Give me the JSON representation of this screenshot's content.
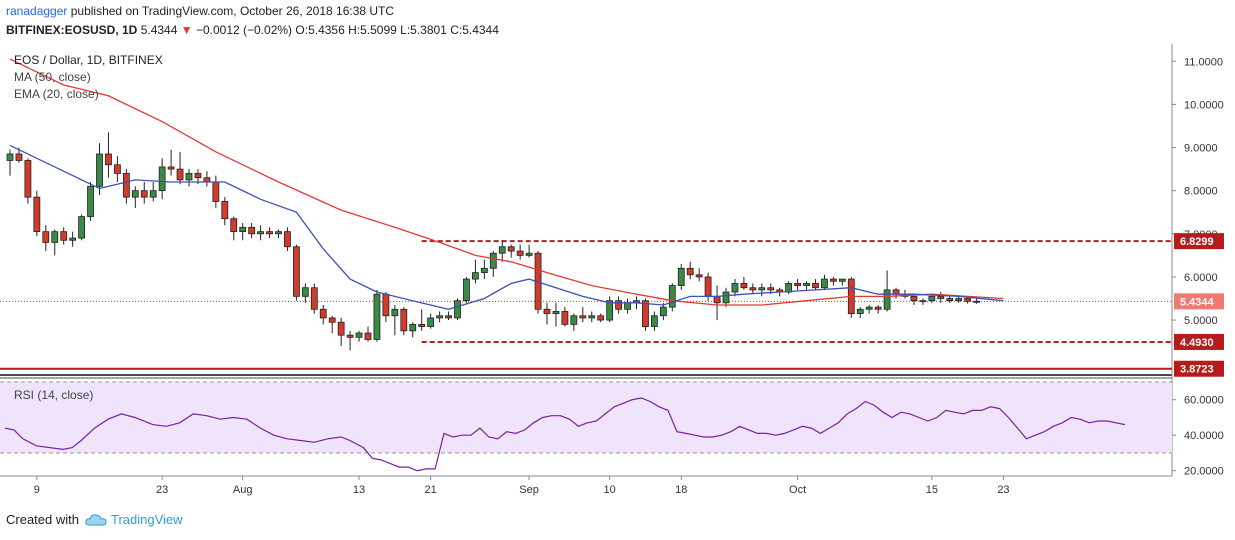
{
  "header": {
    "author": "ranadagger",
    "published_text": "published on TradingView.com, October 26, 2018 16:38 UTC",
    "symbol": "BITFINEX:EOSUSD, 1D",
    "last": "5.4344",
    "change": "−0.0012 (−0.02%)",
    "ohlc": "O:5.4356 H:5.5099 L:5.3801 C:5.4344"
  },
  "legend": {
    "title": "EOS / Dollar, 1D, BITFINEX",
    "ma": "MA (50, close)",
    "ema": "EMA (20, close)",
    "rsi": "RSI (14, close)"
  },
  "footer": {
    "created_with": "Created with",
    "brand": "TradingView"
  },
  "colors": {
    "up": "#3a8a46",
    "down": "#d13b2c",
    "ma": "#e53935",
    "ema": "#3f51b5",
    "level": "#b71c1c",
    "rsi": "#7b1fa2",
    "rsi_band": "#efe4fb",
    "axis_text": "#333333"
  },
  "chart_data": [
    {
      "type": "candlestick",
      "title": "EOS / Dollar, 1D, BITFINEX",
      "x_tick_labels": [
        "9",
        "23",
        "Aug",
        "13",
        "21",
        "Sep",
        "10",
        "18",
        "Oct",
        "15",
        "23"
      ],
      "y_tick_labels": [
        "5.0000",
        "6.0000",
        "7.0000",
        "8.0000",
        "9.0000",
        "10.0000",
        "11.0000"
      ],
      "ylim": [
        3.75,
        11.4
      ],
      "grid": false,
      "price_labels": [
        {
          "value": 6.8299,
          "label": "6.8299"
        },
        {
          "value": 5.4344,
          "label": "5.4344"
        },
        {
          "value": 4.493,
          "label": "4.4930"
        },
        {
          "value": 3.8723,
          "label": "3.8723"
        }
      ],
      "horizontal_levels": [
        6.8299,
        4.493,
        3.8723
      ],
      "candles": [
        [
          8.7,
          8.95,
          8.35,
          8.85
        ],
        [
          8.85,
          9.0,
          8.65,
          8.7
        ],
        [
          8.7,
          8.75,
          7.7,
          7.85
        ],
        [
          7.85,
          8.0,
          6.95,
          7.05
        ],
        [
          7.05,
          7.2,
          6.6,
          6.8
        ],
        [
          6.8,
          7.1,
          6.5,
          7.05
        ],
        [
          7.05,
          7.15,
          6.75,
          6.85
        ],
        [
          6.85,
          7.05,
          6.7,
          6.9
        ],
        [
          6.9,
          7.45,
          6.85,
          7.4
        ],
        [
          7.4,
          8.2,
          7.3,
          8.1
        ],
        [
          8.1,
          9.1,
          7.9,
          8.85
        ],
        [
          8.85,
          9.35,
          8.3,
          8.6
        ],
        [
          8.6,
          8.8,
          8.2,
          8.4
        ],
        [
          8.4,
          8.5,
          7.7,
          7.85
        ],
        [
          7.85,
          8.1,
          7.6,
          8.0
        ],
        [
          8.0,
          8.2,
          7.7,
          7.85
        ],
        [
          7.85,
          8.2,
          7.75,
          8.0
        ],
        [
          8.0,
          8.75,
          7.8,
          8.55
        ],
        [
          8.55,
          8.95,
          8.35,
          8.5
        ],
        [
          8.5,
          8.9,
          8.15,
          8.25
        ],
        [
          8.25,
          8.5,
          8.1,
          8.4
        ],
        [
          8.4,
          8.5,
          8.15,
          8.3
        ],
        [
          8.3,
          8.45,
          8.1,
          8.2
        ],
        [
          8.2,
          8.35,
          7.6,
          7.75
        ],
        [
          7.75,
          7.85,
          7.2,
          7.35
        ],
        [
          7.35,
          7.4,
          6.85,
          7.05
        ],
        [
          7.05,
          7.25,
          6.85,
          7.15
        ],
        [
          7.15,
          7.25,
          6.9,
          7.0
        ],
        [
          7.0,
          7.2,
          6.85,
          7.05
        ],
        [
          7.05,
          7.15,
          6.9,
          7.0
        ],
        [
          7.0,
          7.1,
          6.9,
          7.05
        ],
        [
          7.05,
          7.15,
          6.6,
          6.7
        ],
        [
          6.7,
          6.75,
          5.45,
          5.55
        ],
        [
          5.55,
          5.85,
          5.4,
          5.75
        ],
        [
          5.75,
          5.85,
          5.15,
          5.25
        ],
        [
          5.25,
          5.35,
          4.9,
          5.05
        ],
        [
          5.05,
          5.1,
          4.7,
          4.95
        ],
        [
          4.95,
          5.05,
          4.4,
          4.65
        ],
        [
          4.65,
          4.75,
          4.3,
          4.6
        ],
        [
          4.6,
          4.75,
          4.5,
          4.7
        ],
        [
          4.7,
          4.85,
          4.5,
          4.55
        ],
        [
          4.55,
          5.7,
          4.5,
          5.6
        ],
        [
          5.6,
          5.65,
          4.95,
          5.1
        ],
        [
          5.1,
          5.35,
          4.65,
          5.25
        ],
        [
          5.25,
          5.3,
          4.65,
          4.75
        ],
        [
          4.75,
          4.95,
          4.6,
          4.9
        ],
        [
          4.9,
          5.25,
          4.75,
          4.85
        ],
        [
          4.85,
          5.15,
          4.8,
          5.05
        ],
        [
          5.05,
          5.2,
          4.95,
          5.1
        ],
        [
          5.1,
          5.2,
          5.0,
          5.05
        ],
        [
          5.05,
          5.5,
          5.0,
          5.45
        ],
        [
          5.45,
          6.0,
          5.4,
          5.95
        ],
        [
          5.95,
          6.4,
          5.85,
          6.1
        ],
        [
          6.1,
          6.4,
          5.95,
          6.2
        ],
        [
          6.2,
          6.6,
          6.0,
          6.55
        ],
        [
          6.55,
          6.85,
          6.35,
          6.7
        ],
        [
          6.7,
          6.75,
          6.45,
          6.6
        ],
        [
          6.6,
          6.75,
          6.4,
          6.5
        ],
        [
          6.5,
          6.75,
          6.45,
          6.55
        ],
        [
          6.55,
          6.6,
          5.15,
          5.25
        ],
        [
          5.25,
          5.4,
          4.9,
          5.15
        ],
        [
          5.15,
          5.4,
          4.85,
          5.2
        ],
        [
          5.2,
          5.3,
          4.85,
          4.9
        ],
        [
          4.9,
          5.15,
          4.75,
          5.1
        ],
        [
          5.1,
          5.3,
          4.95,
          5.05
        ],
        [
          5.05,
          5.2,
          4.95,
          5.1
        ],
        [
          5.1,
          5.15,
          4.95,
          5.0
        ],
        [
          5.0,
          5.55,
          4.95,
          5.45
        ],
        [
          5.45,
          5.55,
          5.15,
          5.25
        ],
        [
          5.25,
          5.5,
          5.15,
          5.4
        ],
        [
          5.4,
          5.55,
          5.25,
          5.45
        ],
        [
          5.45,
          5.5,
          4.75,
          4.85
        ],
        [
          4.85,
          5.2,
          4.75,
          5.1
        ],
        [
          5.1,
          5.4,
          5.0,
          5.3
        ],
        [
          5.3,
          5.85,
          5.2,
          5.8
        ],
        [
          5.8,
          6.3,
          5.7,
          6.2
        ],
        [
          6.2,
          6.35,
          5.95,
          6.05
        ],
        [
          6.05,
          6.2,
          5.9,
          6.0
        ],
        [
          6.0,
          6.1,
          5.45,
          5.55
        ],
        [
          5.55,
          5.8,
          5.0,
          5.4
        ],
        [
          5.4,
          5.75,
          5.3,
          5.65
        ],
        [
          5.65,
          5.95,
          5.55,
          5.85
        ],
        [
          5.85,
          6.0,
          5.7,
          5.75
        ],
        [
          5.75,
          5.85,
          5.6,
          5.7
        ],
        [
          5.7,
          5.85,
          5.55,
          5.75
        ],
        [
          5.75,
          5.85,
          5.6,
          5.7
        ],
        [
          5.7,
          5.75,
          5.55,
          5.65
        ],
        [
          5.65,
          5.9,
          5.6,
          5.85
        ],
        [
          5.85,
          5.95,
          5.7,
          5.8
        ],
        [
          5.8,
          5.9,
          5.7,
          5.85
        ],
        [
          5.85,
          5.95,
          5.7,
          5.75
        ],
        [
          5.75,
          6.05,
          5.7,
          5.95
        ],
        [
          5.95,
          6.0,
          5.8,
          5.9
        ],
        [
          5.9,
          5.95,
          5.8,
          5.95
        ],
        [
          5.95,
          6.0,
          5.05,
          5.15
        ],
        [
          5.15,
          5.3,
          5.05,
          5.25
        ],
        [
          5.25,
          5.35,
          5.15,
          5.3
        ],
        [
          5.3,
          5.35,
          5.15,
          5.25
        ],
        [
          5.25,
          6.15,
          5.2,
          5.7
        ],
        [
          5.7,
          5.75,
          5.5,
          5.6
        ],
        [
          5.6,
          5.7,
          5.5,
          5.55
        ],
        [
          5.55,
          5.6,
          5.35,
          5.45
        ],
        [
          5.45,
          5.5,
          5.35,
          5.45
        ],
        [
          5.45,
          5.6,
          5.4,
          5.55
        ],
        [
          5.55,
          5.65,
          5.4,
          5.5
        ],
        [
          5.5,
          5.55,
          5.4,
          5.45
        ],
        [
          5.45,
          5.55,
          5.4,
          5.5
        ],
        [
          5.5,
          5.52,
          5.38,
          5.4356
        ],
        [
          5.4356,
          5.5099,
          5.3801,
          5.4344
        ]
      ],
      "ema20": [
        [
          0,
          9.05
        ],
        [
          5,
          8.55
        ],
        [
          10,
          8.05
        ],
        [
          14,
          8.25
        ],
        [
          18,
          8.2
        ],
        [
          24,
          8.2
        ],
        [
          28,
          7.8
        ],
        [
          32,
          7.5
        ],
        [
          35,
          6.65
        ],
        [
          38,
          5.95
        ],
        [
          41,
          5.65
        ],
        [
          45,
          5.45
        ],
        [
          49,
          5.25
        ],
        [
          53,
          5.5
        ],
        [
          56,
          5.85
        ],
        [
          58,
          5.95
        ],
        [
          61,
          5.75
        ],
        [
          64,
          5.55
        ],
        [
          67,
          5.4
        ],
        [
          70,
          5.4
        ],
        [
          73,
          5.35
        ],
        [
          76,
          5.55
        ],
        [
          79,
          5.55
        ],
        [
          82,
          5.6
        ],
        [
          86,
          5.65
        ],
        [
          90,
          5.7
        ],
        [
          94,
          5.75
        ],
        [
          97,
          5.6
        ],
        [
          101,
          5.6
        ],
        [
          106,
          5.55
        ],
        [
          111,
          5.45
        ]
      ],
      "ma50": [
        [
          0,
          11.05
        ],
        [
          6,
          10.45
        ],
        [
          11,
          10.2
        ],
        [
          17,
          9.6
        ],
        [
          23,
          8.9
        ],
        [
          30,
          8.2
        ],
        [
          37,
          7.55
        ],
        [
          43,
          7.15
        ],
        [
          48,
          6.8
        ],
        [
          52,
          6.5
        ],
        [
          56,
          6.35
        ],
        [
          60,
          6.1
        ],
        [
          65,
          5.8
        ],
        [
          70,
          5.6
        ],
        [
          74,
          5.45
        ],
        [
          79,
          5.35
        ],
        [
          84,
          5.35
        ],
        [
          89,
          5.45
        ],
        [
          94,
          5.55
        ],
        [
          98,
          5.55
        ],
        [
          103,
          5.6
        ],
        [
          107,
          5.55
        ],
        [
          111,
          5.5
        ]
      ]
    },
    {
      "type": "line",
      "title": "RSI (14, close)",
      "y_tick_labels": [
        "20.0000",
        "40.0000",
        "60.0000"
      ],
      "ylim": [
        17,
        70
      ],
      "band": [
        30,
        70
      ],
      "points": [
        [
          0,
          44
        ],
        [
          2,
          43
        ],
        [
          4,
          38
        ],
        [
          7,
          34
        ],
        [
          10,
          33
        ],
        [
          13,
          32
        ],
        [
          15,
          33
        ],
        [
          17,
          37
        ],
        [
          20,
          44
        ],
        [
          23,
          49
        ],
        [
          26,
          52
        ],
        [
          29,
          50
        ],
        [
          33,
          46
        ],
        [
          36,
          45
        ],
        [
          39,
          47
        ],
        [
          42,
          52
        ],
        [
          45,
          51
        ],
        [
          48,
          49
        ],
        [
          51,
          50
        ],
        [
          54,
          49
        ],
        [
          57,
          44
        ],
        [
          60,
          40
        ],
        [
          63,
          38
        ],
        [
          66,
          37
        ],
        [
          69,
          36
        ],
        [
          72,
          38
        ],
        [
          75,
          39
        ],
        [
          77,
          37
        ],
        [
          80,
          33
        ],
        [
          82,
          27
        ],
        [
          84,
          26
        ],
        [
          86,
          24
        ],
        [
          88,
          22
        ],
        [
          90,
          22
        ],
        [
          92,
          20
        ],
        [
          94,
          21
        ],
        [
          96,
          21
        ],
        [
          98,
          41
        ],
        [
          100,
          39
        ],
        [
          102,
          40
        ],
        [
          104,
          40
        ],
        [
          106,
          44
        ],
        [
          108,
          39
        ],
        [
          110,
          38
        ],
        [
          112,
          42
        ],
        [
          114,
          41
        ],
        [
          116,
          43
        ],
        [
          118,
          47
        ],
        [
          120,
          50
        ],
        [
          122,
          51
        ],
        [
          124,
          51
        ],
        [
          126,
          49
        ],
        [
          128,
          45
        ],
        [
          130,
          47
        ],
        [
          132,
          48
        ],
        [
          134,
          52
        ],
        [
          136,
          56
        ],
        [
          138,
          58
        ],
        [
          140,
          60
        ],
        [
          142,
          61
        ],
        [
          144,
          59
        ],
        [
          146,
          56
        ],
        [
          148,
          54
        ],
        [
          150,
          42
        ],
        [
          152,
          41
        ],
        [
          154,
          40
        ],
        [
          156,
          39
        ],
        [
          158,
          39
        ],
        [
          160,
          40
        ],
        [
          162,
          42
        ],
        [
          164,
          45
        ],
        [
          166,
          43
        ],
        [
          168,
          41
        ],
        [
          170,
          41
        ],
        [
          172,
          40
        ],
        [
          174,
          41
        ],
        [
          176,
          43
        ],
        [
          178,
          45
        ],
        [
          180,
          44
        ],
        [
          182,
          41
        ],
        [
          184,
          44
        ],
        [
          186,
          47
        ],
        [
          188,
          52
        ],
        [
          190,
          55
        ],
        [
          192,
          59
        ],
        [
          194,
          57
        ],
        [
          196,
          53
        ],
        [
          198,
          50
        ],
        [
          200,
          53
        ],
        [
          202,
          52
        ],
        [
          204,
          50
        ],
        [
          206,
          48
        ],
        [
          208,
          50
        ],
        [
          210,
          54
        ],
        [
          212,
          53
        ],
        [
          214,
          52
        ],
        [
          216,
          54
        ],
        [
          218,
          54
        ],
        [
          220,
          56
        ],
        [
          222,
          55
        ],
        [
          224,
          50
        ],
        [
          226,
          44
        ],
        [
          228,
          38
        ],
        [
          230,
          40
        ],
        [
          232,
          42
        ],
        [
          234,
          45
        ],
        [
          236,
          47
        ],
        [
          238,
          50
        ],
        [
          240,
          49
        ],
        [
          242,
          47
        ],
        [
          244,
          48
        ],
        [
          246,
          48
        ],
        [
          248,
          47
        ],
        [
          250,
          46
        ]
      ]
    }
  ]
}
